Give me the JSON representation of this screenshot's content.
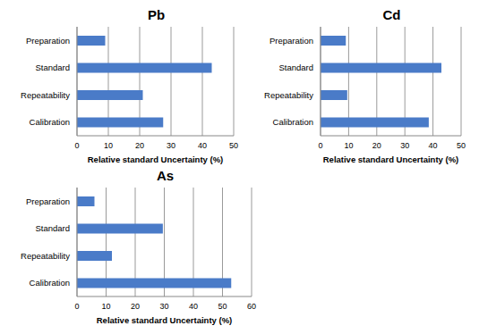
{
  "chart_data": [
    {
      "type": "bar",
      "title": "Pb",
      "orientation": "horizontal",
      "categories": [
        "Preparation",
        "Standard",
        "Repeatability",
        "Calibration"
      ],
      "values": [
        9,
        43,
        21,
        27.5
      ],
      "color": "#4a7bc8",
      "xlim": [
        0,
        50
      ],
      "xticks": [
        0,
        10,
        20,
        30,
        40,
        50
      ],
      "xlabel": "Relative standard Uncertainty (%)",
      "grid": true
    },
    {
      "type": "bar",
      "title": "Cd",
      "orientation": "horizontal",
      "categories": [
        "Preparation",
        "Standard",
        "Repeatability",
        "Calibration"
      ],
      "values": [
        9,
        43,
        9.5,
        38.5
      ],
      "color": "#4a7bc8",
      "xlim": [
        0,
        50
      ],
      "xticks": [
        0,
        10,
        20,
        30,
        40,
        50
      ],
      "xlabel": "Relative standard Uncertainty (%)",
      "grid": true
    },
    {
      "type": "bar",
      "title": "As",
      "orientation": "horizontal",
      "categories": [
        "Preparation",
        "Standard",
        "Repeatability",
        "Calibration"
      ],
      "values": [
        6,
        29.5,
        12,
        53
      ],
      "color": "#4a7bc8",
      "xlim": [
        0,
        60
      ],
      "xticks": [
        0,
        10,
        20,
        30,
        40,
        50,
        60
      ],
      "xlabel": "Relative standard Uncertainty (%)",
      "grid": true
    }
  ]
}
